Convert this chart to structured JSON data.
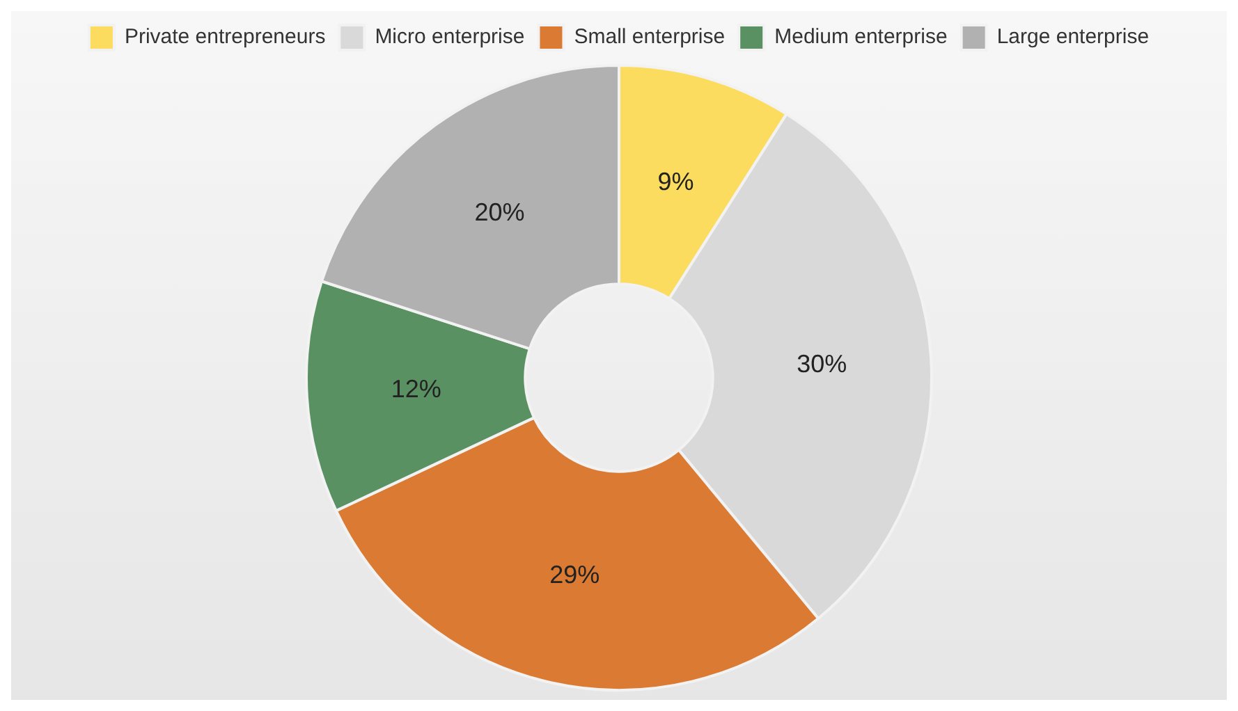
{
  "chart_data": {
    "type": "donut",
    "categories": [
      "Private entrepreneurs",
      "Micro enterprise",
      "Small enterprise",
      "Medium enterprise",
      "Large enterprise"
    ],
    "values": [
      9,
      30,
      29,
      12,
      20
    ],
    "colors": [
      "#fcdc5f",
      "#d9d9d9",
      "#db7b33",
      "#5a9163",
      "#b1b1b1"
    ],
    "value_labels": [
      "9%",
      "30%",
      "29%",
      "12%",
      "20%"
    ],
    "legend": "top"
  }
}
